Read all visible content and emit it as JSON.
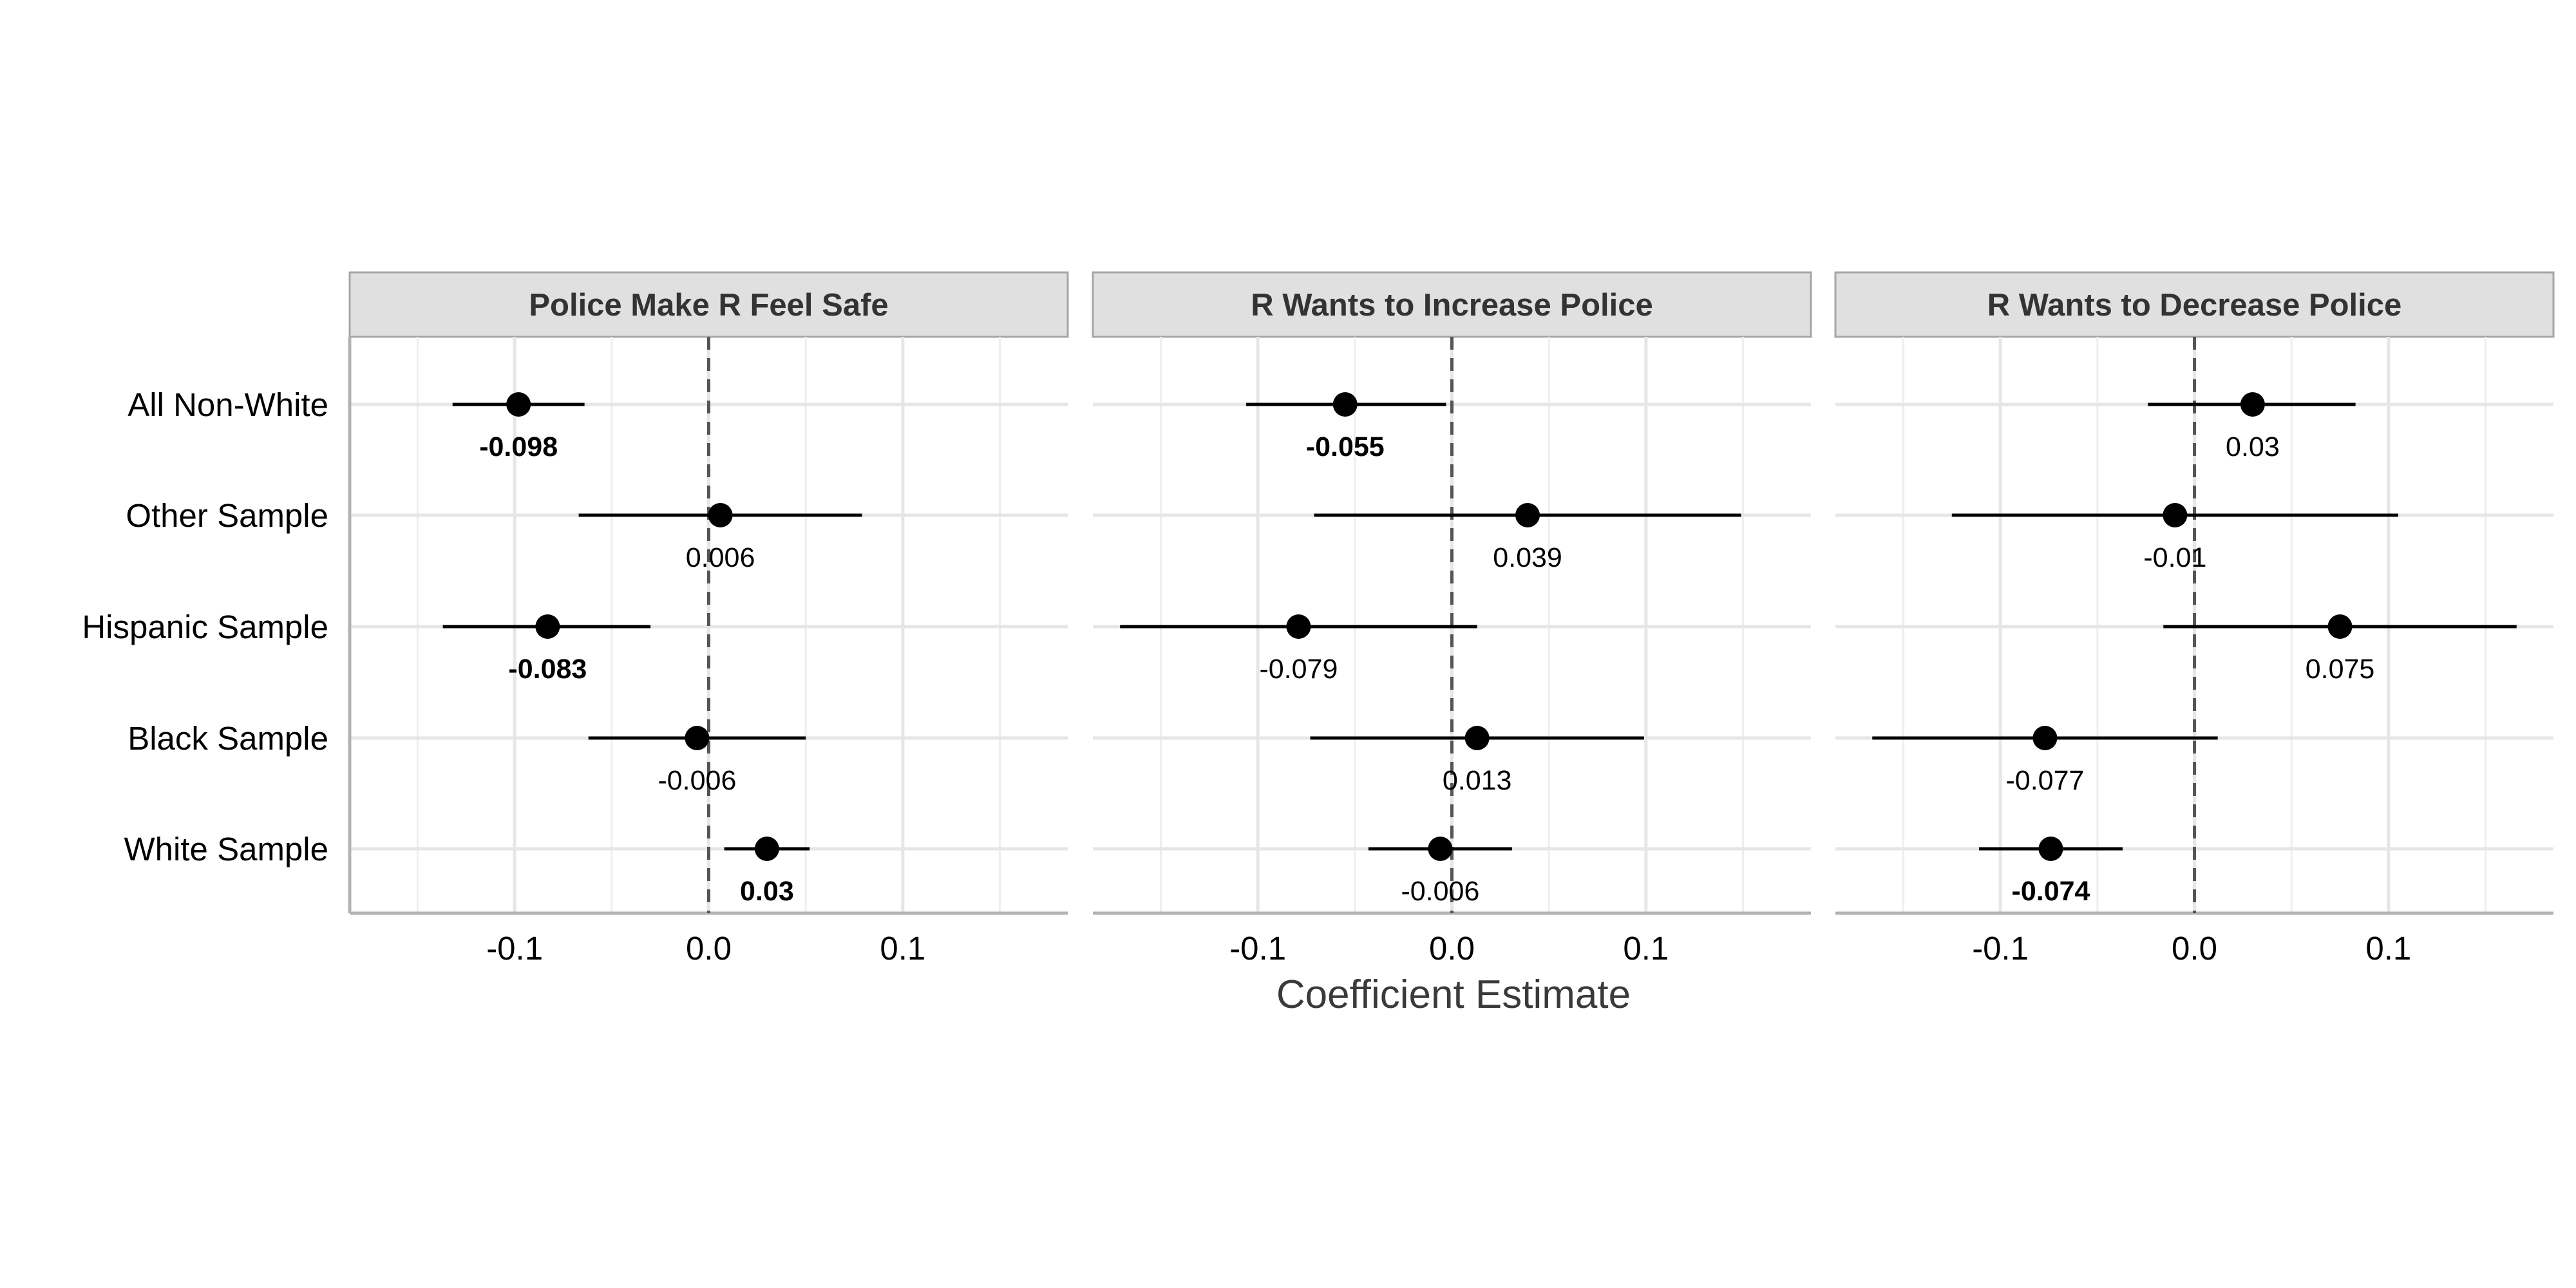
{
  "chart_data": {
    "type": "scatter",
    "xlabel": "Coefficient Estimate",
    "xlim": [
      -0.185,
      0.185
    ],
    "x_ticks": [
      -0.1,
      0.0,
      0.1
    ],
    "x_tick_labels": [
      "-0.1",
      "0.0",
      "0.1"
    ],
    "reference_line": 0,
    "grid": true,
    "categories": [
      "All Non-White",
      "Other Sample",
      "Hispanic Sample",
      "Black Sample",
      "White Sample"
    ],
    "panels": [
      {
        "title": "Police Make R Feel Safe",
        "points": [
          {
            "category": "All Non-White",
            "estimate": -0.098,
            "ci_low": -0.132,
            "ci_high": -0.064,
            "label": "-0.098",
            "significant": true
          },
          {
            "category": "Other Sample",
            "estimate": 0.006,
            "ci_low": -0.067,
            "ci_high": 0.079,
            "label": "0.006",
            "significant": false
          },
          {
            "category": "Hispanic Sample",
            "estimate": -0.083,
            "ci_low": -0.137,
            "ci_high": -0.03,
            "label": "-0.083",
            "significant": true
          },
          {
            "category": "Black Sample",
            "estimate": -0.006,
            "ci_low": -0.062,
            "ci_high": 0.05,
            "label": "-0.006",
            "significant": false
          },
          {
            "category": "White Sample",
            "estimate": 0.03,
            "ci_low": 0.008,
            "ci_high": 0.052,
            "label": "0.03",
            "significant": true
          }
        ]
      },
      {
        "title": "R Wants to Increase Police",
        "points": [
          {
            "category": "All Non-White",
            "estimate": -0.055,
            "ci_low": -0.106,
            "ci_high": -0.003,
            "label": "-0.055",
            "significant": true
          },
          {
            "category": "Other Sample",
            "estimate": 0.039,
            "ci_low": -0.071,
            "ci_high": 0.149,
            "label": "0.039",
            "significant": false
          },
          {
            "category": "Hispanic Sample",
            "estimate": -0.079,
            "ci_low": -0.171,
            "ci_high": 0.013,
            "label": "-0.079",
            "significant": false
          },
          {
            "category": "Black Sample",
            "estimate": 0.013,
            "ci_low": -0.073,
            "ci_high": 0.099,
            "label": "0.013",
            "significant": false
          },
          {
            "category": "White Sample",
            "estimate": -0.006,
            "ci_low": -0.043,
            "ci_high": 0.031,
            "label": "-0.006",
            "significant": false
          }
        ]
      },
      {
        "title": "R Wants to Decrease Police",
        "points": [
          {
            "category": "All Non-White",
            "estimate": 0.03,
            "ci_low": -0.024,
            "ci_high": 0.083,
            "label": "0.03",
            "significant": false
          },
          {
            "category": "Other Sample",
            "estimate": -0.01,
            "ci_low": -0.125,
            "ci_high": 0.105,
            "label": "-0.01",
            "significant": false
          },
          {
            "category": "Hispanic Sample",
            "estimate": 0.075,
            "ci_low": -0.016,
            "ci_high": 0.166,
            "label": "0.075",
            "significant": false
          },
          {
            "category": "Black Sample",
            "estimate": -0.077,
            "ci_low": -0.166,
            "ci_high": 0.012,
            "label": "-0.077",
            "significant": false
          },
          {
            "category": "White Sample",
            "estimate": -0.074,
            "ci_low": -0.111,
            "ci_high": -0.037,
            "label": "-0.074",
            "significant": true
          }
        ]
      }
    ]
  }
}
